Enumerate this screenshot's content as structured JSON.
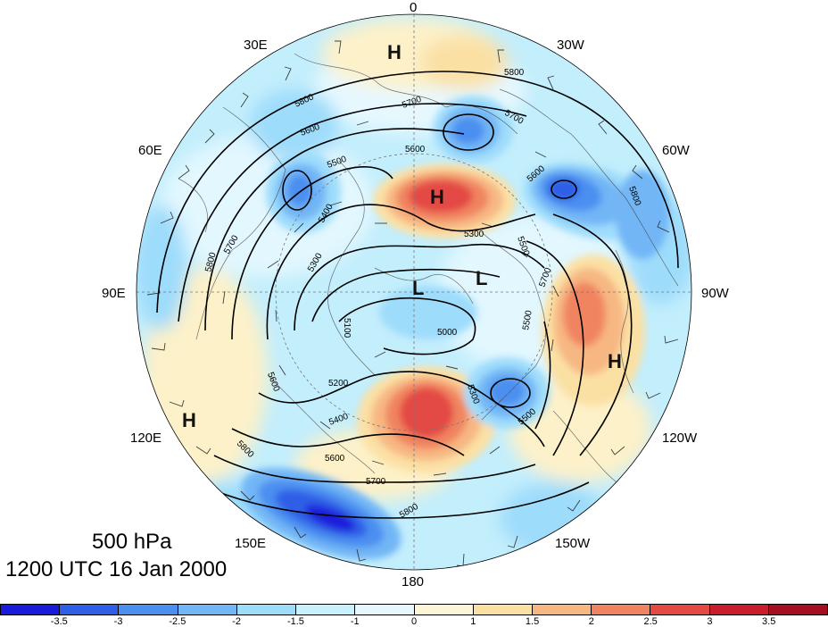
{
  "map": {
    "title_level": "500 hPa",
    "title_time": "1200 UTC 16 Jan 2000",
    "longitude_labels": {
      "top": "0",
      "lon30e": "30E",
      "lon30w": "30W",
      "lon60e": "60E",
      "lon60w": "60W",
      "lon90e": "90E",
      "lon90w": "90W",
      "lon120e": "120E",
      "lon120w": "120W",
      "lon150e": "150E",
      "lon150w": "150W",
      "bottom": "180"
    },
    "contour_labels": [
      "5800",
      "5800",
      "5700",
      "5700",
      "5600",
      "5600",
      "5500",
      "5400",
      "5300",
      "5300",
      "5200",
      "5100",
      "5000",
      "5500",
      "5600",
      "5700",
      "5800",
      "5800",
      "5700",
      "5600",
      "5500",
      "5400",
      "5300",
      "5500",
      "5600",
      "5700",
      "5800",
      "5800"
    ],
    "pressure_centers": [
      {
        "letter": "H"
      },
      {
        "letter": "H"
      },
      {
        "letter": "H"
      },
      {
        "letter": "H"
      },
      {
        "letter": "L"
      },
      {
        "letter": "L"
      }
    ]
  },
  "colorbar": {
    "ticks": [
      "-3.5",
      "-3",
      "-2.5",
      "-2",
      "-1.5",
      "-1",
      "0",
      "1",
      "1.5",
      "2",
      "2.5",
      "3",
      "3.5"
    ],
    "colors": [
      "#1a1adb",
      "#2e5fe6",
      "#4b8ff0",
      "#72b6f6",
      "#9edcfb",
      "#c9f1fd",
      "#e6f8fe",
      "#fdf6d6",
      "#fbe0a4",
      "#f7b783",
      "#f08461",
      "#e34a44",
      "#c91d2b",
      "#a50f22"
    ]
  }
}
